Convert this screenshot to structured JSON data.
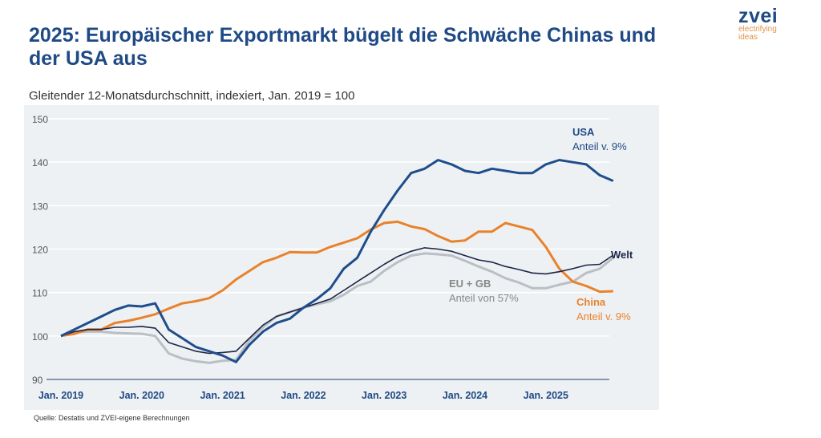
{
  "title": "2025: Europäischer Exportmarkt bügelt die Schwäche Chinas und der USA aus",
  "logo": {
    "name": "zvei",
    "tagline1": "electrifying",
    "tagline2": "ideas"
  },
  "subtitle": "Gleitender 12-Monatsdurchschnitt, indexiert, Jan. 2019 = 100",
  "source": "Quelle: Destatis und ZVEI-eigene Berechnungen",
  "chart_data": {
    "type": "line",
    "ylim": [
      90,
      150
    ],
    "yticks": [
      "150",
      "140",
      "130",
      "120",
      "110",
      "100",
      "90"
    ],
    "xticks": [
      "Jan. 2019",
      "Jan. 2020",
      "Jan. 2021",
      "Jan. 2022",
      "Jan. 2023",
      "Jan. 2024",
      "Jan. 2025"
    ],
    "grid": true,
    "x": [
      "2019-01",
      "2019-03",
      "2019-05",
      "2019-07",
      "2019-09",
      "2019-11",
      "2020-01",
      "2020-03",
      "2020-05",
      "2020-07",
      "2020-09",
      "2020-11",
      "2021-01",
      "2021-03",
      "2021-05",
      "2021-07",
      "2021-09",
      "2021-11",
      "2022-01",
      "2022-03",
      "2022-05",
      "2022-07",
      "2022-09",
      "2022-11",
      "2023-01",
      "2023-03",
      "2023-05",
      "2023-07",
      "2023-09",
      "2023-11",
      "2024-01",
      "2024-03",
      "2024-05",
      "2024-07",
      "2024-09",
      "2024-11",
      "2025-01",
      "2025-03",
      "2025-05",
      "2025-07",
      "2025-09",
      "2025-11"
    ],
    "series": [
      {
        "name": "EU + GB",
        "note": "Anteil von 57%",
        "color": "#b9bfc5",
        "values": [
          100,
          100.8,
          101,
          101,
          100.7,
          100.6,
          100.5,
          100,
          96,
          94.8,
          94.2,
          93.8,
          94.3,
          94.5,
          99,
          102,
          104.5,
          105.5,
          106.5,
          107.3,
          108,
          109.5,
          111.5,
          112.5,
          115,
          117,
          118.5,
          119,
          118.8,
          118.5,
          117.3,
          116,
          114.8,
          113.3,
          112.3,
          111,
          111,
          111.8,
          112.5,
          114.5,
          115.5,
          118
        ]
      },
      {
        "name": "China",
        "note": "Anteil v. 9%",
        "color": "#e8822c",
        "values": [
          100,
          100.5,
          101.5,
          101.5,
          103,
          103.5,
          104.2,
          105,
          106.3,
          107.5,
          108,
          108.7,
          110.5,
          113,
          115,
          117,
          118,
          119.3,
          119.2,
          119.2,
          120.5,
          121.5,
          122.5,
          124.5,
          126,
          126.3,
          125.2,
          124.6,
          123,
          121.7,
          122,
          124,
          124,
          126,
          125.2,
          124.4,
          120.5,
          115.5,
          112.5,
          111.5,
          110.2,
          110.3
        ]
      },
      {
        "name": "Welt",
        "note": "",
        "color": "#1c2547",
        "values": [
          100,
          101,
          101.5,
          101.5,
          102,
          102,
          102.2,
          101.8,
          98.5,
          97.5,
          96.5,
          96,
          96.2,
          96.5,
          99.5,
          102.5,
          104.5,
          105.5,
          106.5,
          107.5,
          108.5,
          110.5,
          112.5,
          114.5,
          116.5,
          118.3,
          119.5,
          120.3,
          120,
          119.5,
          118.5,
          117.5,
          117,
          116,
          115.3,
          114.5,
          114.3,
          114.8,
          115.5,
          116.3,
          116.5,
          118.6
        ]
      },
      {
        "name": "USA",
        "note": "Anteil v. 9%",
        "color": "#1f4e8c",
        "values": [
          100,
          101.5,
          103,
          104.5,
          106,
          107,
          106.8,
          107.5,
          101.5,
          99.5,
          97.5,
          96.5,
          95.5,
          94,
          98,
          101,
          103,
          104,
          106.5,
          108.5,
          111,
          115.5,
          118,
          124,
          129,
          133.5,
          137.5,
          138.5,
          140.5,
          139.5,
          138,
          137.5,
          138.5,
          138,
          137.5,
          137.5,
          139.5,
          140.5,
          140,
          139.5,
          137,
          135.7
        ]
      }
    ]
  }
}
